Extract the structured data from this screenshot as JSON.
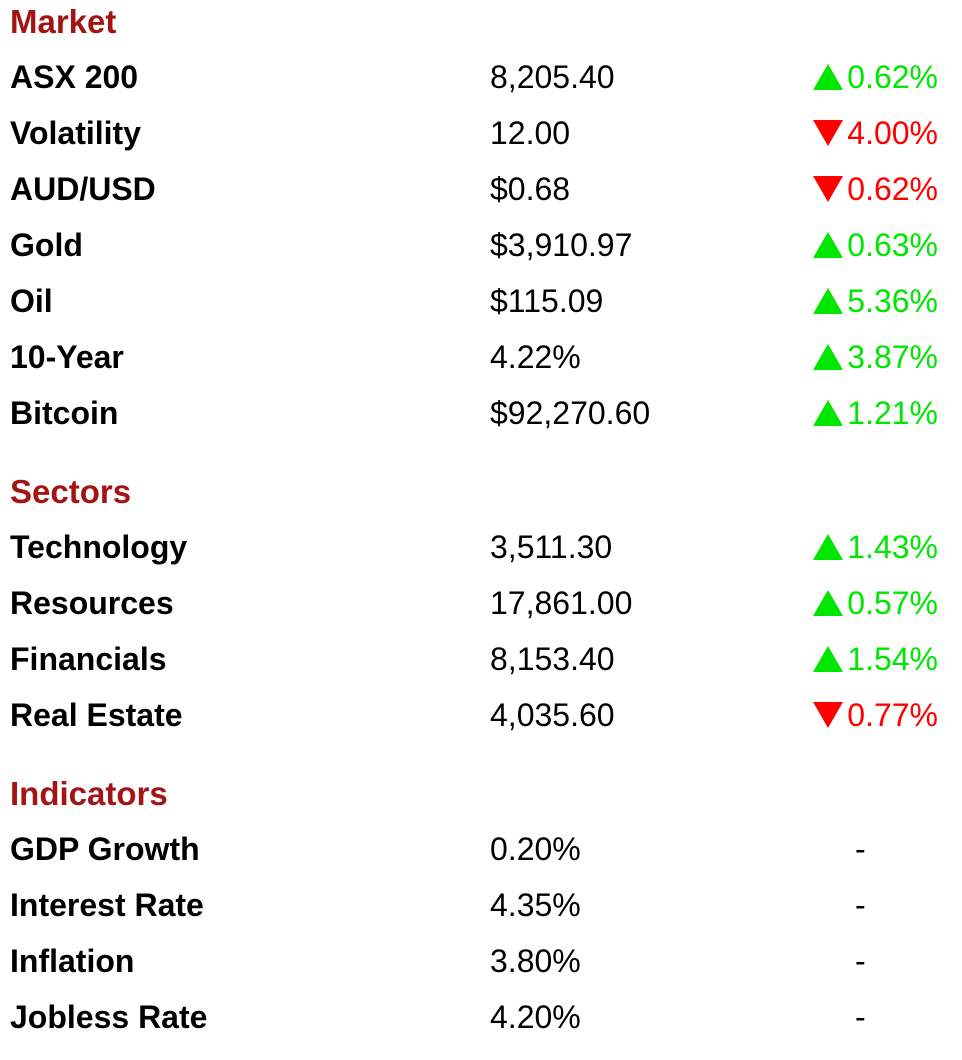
{
  "colors": {
    "section_title": "#a31515",
    "up": "#00e600",
    "down": "#ff0000"
  },
  "market": {
    "title": "Market",
    "rows": [
      {
        "name": "ASX 200",
        "value": "8,205.40",
        "direction": "up",
        "change": "0.62%"
      },
      {
        "name": "Volatility",
        "value": "12.00",
        "direction": "down",
        "change": "4.00%"
      },
      {
        "name": "AUD/USD",
        "value": "$0.68",
        "direction": "down",
        "change": "0.62%"
      },
      {
        "name": "Gold",
        "value": "$3,910.97",
        "direction": "up",
        "change": "0.63%"
      },
      {
        "name": "Oil",
        "value": "$115.09",
        "direction": "up",
        "change": "5.36%"
      },
      {
        "name": "10-Year",
        "value": "4.22%",
        "direction": "up",
        "change": "3.87%"
      },
      {
        "name": "Bitcoin",
        "value": "$92,270.60",
        "direction": "up",
        "change": "1.21%"
      }
    ]
  },
  "sectors": {
    "title": "Sectors",
    "rows": [
      {
        "name": "Technology",
        "value": "3,511.30",
        "direction": "up",
        "change": "1.43%"
      },
      {
        "name": "Resources",
        "value": "17,861.00",
        "direction": "up",
        "change": "0.57%"
      },
      {
        "name": "Financials",
        "value": "8,153.40",
        "direction": "up",
        "change": "1.54%"
      },
      {
        "name": "Real Estate",
        "value": "4,035.60",
        "direction": "down",
        "change": "0.77%"
      }
    ]
  },
  "indicators": {
    "title": "Indicators",
    "rows": [
      {
        "name": "GDP Growth",
        "value": "0.20%",
        "change": "-"
      },
      {
        "name": "Interest Rate",
        "value": "4.35%",
        "change": "-"
      },
      {
        "name": "Inflation",
        "value": "3.80%",
        "change": "-"
      },
      {
        "name": "Jobless Rate",
        "value": "4.20%",
        "change": "-"
      }
    ]
  }
}
